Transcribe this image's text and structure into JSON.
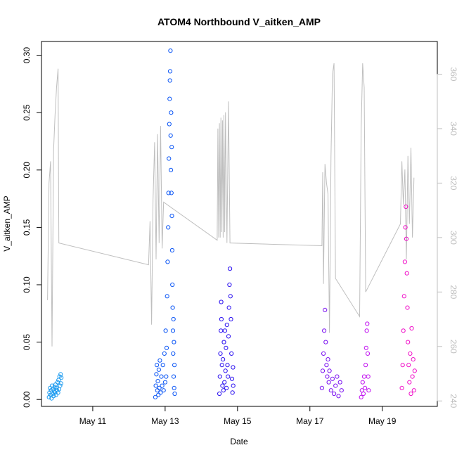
{
  "chart_data": {
    "type": "scatter",
    "title": "ATOM4 Northbound V_aitken_AMP",
    "xlabel": "Date",
    "ylabel": "V_aitken_AMP",
    "x_ticks": [
      {
        "date": "2017-05-11",
        "label": "May 11"
      },
      {
        "date": "2017-05-13",
        "label": "May 13"
      },
      {
        "date": "2017-05-15",
        "label": "May 15"
      },
      {
        "date": "2017-05-17",
        "label": "May 17"
      },
      {
        "date": "2017-05-19",
        "label": "May 19"
      }
    ],
    "xlim": [
      "2017-05-09T14:00",
      "2017-05-20T12:30"
    ],
    "ylim": [
      -0.006,
      0.312
    ],
    "y_ticks": [
      {
        "value": 0.0,
        "label": "0.00"
      },
      {
        "value": 0.05,
        "label": "0.05"
      },
      {
        "value": 0.1,
        "label": "0.10"
      },
      {
        "value": 0.15,
        "label": "0.15"
      },
      {
        "value": 0.2,
        "label": "0.20"
      },
      {
        "value": 0.25,
        "label": "0.25"
      },
      {
        "value": 0.3,
        "label": "0.30"
      }
    ],
    "y2lim": [
      238,
      372
    ],
    "y2_ticks": [
      {
        "value": 240,
        "label": "240"
      },
      {
        "value": 260,
        "label": "260"
      },
      {
        "value": 280,
        "label": "280"
      },
      {
        "value": 300,
        "label": "300"
      },
      {
        "value": 320,
        "label": "320"
      },
      {
        "value": 340,
        "label": "340"
      },
      {
        "value": 360,
        "label": "360"
      }
    ],
    "grid": false,
    "legend": "none",
    "series": [
      {
        "color": "#1e9cf0",
        "points": [
          [
            "2017-05-09T19:00",
            0.002
          ],
          [
            "2017-05-09T19:20",
            0.006
          ],
          [
            "2017-05-09T19:40",
            0.01
          ],
          [
            "2017-05-09T20:00",
            0.004
          ],
          [
            "2017-05-09T20:20",
            0.008
          ],
          [
            "2017-05-09T20:40",
            0.001
          ],
          [
            "2017-05-09T21:00",
            0.012
          ],
          [
            "2017-05-09T21:20",
            0.005
          ],
          [
            "2017-05-09T21:40",
            0.009
          ],
          [
            "2017-05-09T22:00",
            0.003
          ],
          [
            "2017-05-09T22:20",
            0.007
          ],
          [
            "2017-05-09T22:40",
            0.011
          ],
          [
            "2017-05-09T23:00",
            0.006
          ],
          [
            "2017-05-09T23:20",
            0.013
          ],
          [
            "2017-05-09T23:40",
            0.004
          ],
          [
            "2017-05-10T00:00",
            0.01
          ],
          [
            "2017-05-10T00:20",
            0.008
          ],
          [
            "2017-05-10T00:40",
            0.015
          ],
          [
            "2017-05-10T01:00",
            0.006
          ],
          [
            "2017-05-10T01:20",
            0.017
          ],
          [
            "2017-05-10T01:40",
            0.009
          ],
          [
            "2017-05-10T02:00",
            0.02
          ],
          [
            "2017-05-10T02:20",
            0.012
          ],
          [
            "2017-05-10T02:40",
            0.022
          ],
          [
            "2017-05-10T03:00",
            0.014
          ],
          [
            "2017-05-10T03:10",
            0.019
          ]
        ]
      },
      {
        "color": "#0a55f5",
        "points": [
          [
            "2017-05-12T17:30",
            0.002
          ],
          [
            "2017-05-12T17:50",
            0.012
          ],
          [
            "2017-05-12T18:10",
            0.022
          ],
          [
            "2017-05-12T18:30",
            0.03
          ],
          [
            "2017-05-12T18:50",
            0.008
          ],
          [
            "2017-05-12T19:10",
            0.016
          ],
          [
            "2017-05-12T19:30",
            0.004
          ],
          [
            "2017-05-12T19:50",
            0.026
          ],
          [
            "2017-05-12T20:10",
            0.01
          ],
          [
            "2017-05-12T20:30",
            0.034
          ],
          [
            "2017-05-12T21:00",
            0.006
          ],
          [
            "2017-05-12T21:30",
            0.02
          ],
          [
            "2017-05-12T22:00",
            0.012
          ],
          [
            "2017-05-12T22:30",
            0.03
          ],
          [
            "2017-05-12T23:00",
            0.008
          ],
          [
            "2017-05-12T23:30",
            0.04
          ],
          [
            "2017-05-13T00:00",
            0.015
          ],
          [
            "2017-05-13T00:20",
            0.06
          ],
          [
            "2017-05-13T00:40",
            0.02
          ],
          [
            "2017-05-13T01:00",
            0.045
          ],
          [
            "2017-05-13T01:20",
            0.09
          ],
          [
            "2017-05-13T01:40",
            0.12
          ],
          [
            "2017-05-13T02:00",
            0.15
          ],
          [
            "2017-05-13T02:15",
            0.18
          ],
          [
            "2017-05-13T02:30",
            0.21
          ],
          [
            "2017-05-13T02:45",
            0.24
          ],
          [
            "2017-05-13T03:00",
            0.262
          ],
          [
            "2017-05-13T03:10",
            0.278
          ],
          [
            "2017-05-13T03:20",
            0.286
          ],
          [
            "2017-05-13T03:30",
            0.304
          ],
          [
            "2017-05-13T03:40",
            0.23
          ],
          [
            "2017-05-13T03:50",
            0.2
          ],
          [
            "2017-05-13T04:00",
            0.25
          ],
          [
            "2017-05-13T04:10",
            0.18
          ],
          [
            "2017-05-13T04:20",
            0.22
          ],
          [
            "2017-05-13T04:30",
            0.16
          ],
          [
            "2017-05-13T04:40",
            0.13
          ],
          [
            "2017-05-13T04:50",
            0.1
          ],
          [
            "2017-05-13T05:00",
            0.08
          ],
          [
            "2017-05-13T05:10",
            0.06
          ],
          [
            "2017-05-13T05:20",
            0.04
          ],
          [
            "2017-05-13T05:30",
            0.07
          ],
          [
            "2017-05-13T05:40",
            0.02
          ],
          [
            "2017-05-13T05:50",
            0.05
          ],
          [
            "2017-05-13T06:00",
            0.01
          ],
          [
            "2017-05-13T06:10",
            0.03
          ],
          [
            "2017-05-13T06:20",
            0.005
          ]
        ]
      },
      {
        "color": "#2a10f0",
        "points": [
          [
            "2017-05-14T12:00",
            0.005
          ],
          [
            "2017-05-14T12:20",
            0.02
          ],
          [
            "2017-05-14T12:40",
            0.04
          ],
          [
            "2017-05-14T13:00",
            0.06
          ],
          [
            "2017-05-14T13:10",
            0.085
          ],
          [
            "2017-05-14T13:20",
            0.07
          ],
          [
            "2017-05-14T13:40",
            0.03
          ],
          [
            "2017-05-14T14:00",
            0.012
          ],
          [
            "2017-05-14T14:20",
            0.035
          ],
          [
            "2017-05-14T14:40",
            0.008
          ],
          [
            "2017-05-14T15:00",
            0.05
          ],
          [
            "2017-05-14T15:20",
            0.015
          ],
          [
            "2017-05-14T15:40",
            0.06
          ],
          [
            "2017-05-14T16:00",
            0.025
          ],
          [
            "2017-05-14T16:20",
            0.045
          ],
          [
            "2017-05-14T16:40",
            0.01
          ],
          [
            "2017-05-14T17:00",
            0.065
          ],
          [
            "2017-05-14T17:20",
            0.03
          ],
          [
            "2017-05-14T17:40",
            0.02
          ],
          [
            "2017-05-14T18:00",
            0.055
          ],
          [
            "2017-05-14T18:20",
            0.08
          ],
          [
            "2017-05-14T18:40",
            0.1
          ],
          [
            "2017-05-14T19:00",
            0.114
          ],
          [
            "2017-05-14T19:20",
            0.09
          ],
          [
            "2017-05-14T19:40",
            0.07
          ],
          [
            "2017-05-14T20:00",
            0.04
          ],
          [
            "2017-05-14T20:20",
            0.018
          ],
          [
            "2017-05-14T20:40",
            0.006
          ],
          [
            "2017-05-14T21:00",
            0.028
          ],
          [
            "2017-05-14T21:10",
            0.012
          ]
        ]
      },
      {
        "color": "#7a10f0",
        "points": [
          [
            "2017-05-17T08:00",
            0.01
          ],
          [
            "2017-05-17T08:30",
            0.025
          ],
          [
            "2017-05-17T09:00",
            0.04
          ],
          [
            "2017-05-17T09:30",
            0.06
          ],
          [
            "2017-05-17T10:00",
            0.078
          ],
          [
            "2017-05-17T10:30",
            0.05
          ],
          [
            "2017-05-17T11:00",
            0.03
          ],
          [
            "2017-05-17T11:30",
            0.02
          ],
          [
            "2017-05-17T12:00",
            0.035
          ],
          [
            "2017-05-17T12:30",
            0.015
          ],
          [
            "2017-05-17T13:00",
            0.025
          ],
          [
            "2017-05-17T14:00",
            0.008
          ],
          [
            "2017-05-17T15:00",
            0.018
          ],
          [
            "2017-05-17T16:00",
            0.005
          ],
          [
            "2017-05-17T17:00",
            0.012
          ],
          [
            "2017-05-17T18:00",
            0.02
          ],
          [
            "2017-05-17T19:00",
            0.003
          ],
          [
            "2017-05-17T20:00",
            0.015
          ],
          [
            "2017-05-17T21:00",
            0.008
          ]
        ]
      },
      {
        "color": "#c010f0",
        "points": [
          [
            "2017-05-18T10:00",
            0.002
          ],
          [
            "2017-05-18T10:30",
            0.008
          ],
          [
            "2017-05-18T11:00",
            0.015
          ],
          [
            "2017-05-18T11:30",
            0.005
          ],
          [
            "2017-05-18T12:00",
            0.02
          ],
          [
            "2017-05-18T12:30",
            0.01
          ],
          [
            "2017-05-18T13:00",
            0.03
          ],
          [
            "2017-05-18T13:20",
            0.045
          ],
          [
            "2017-05-18T13:40",
            0.06
          ],
          [
            "2017-05-18T14:00",
            0.066
          ],
          [
            "2017-05-18T14:20",
            0.04
          ],
          [
            "2017-05-18T14:40",
            0.02
          ],
          [
            "2017-05-18T15:00",
            0.008
          ]
        ]
      },
      {
        "color": "#f010c8",
        "points": [
          [
            "2017-05-19T13:00",
            0.01
          ],
          [
            "2017-05-19T13:30",
            0.03
          ],
          [
            "2017-05-19T14:00",
            0.06
          ],
          [
            "2017-05-19T14:30",
            0.09
          ],
          [
            "2017-05-19T15:00",
            0.12
          ],
          [
            "2017-05-19T15:20",
            0.15
          ],
          [
            "2017-05-19T15:40",
            0.168
          ],
          [
            "2017-05-19T16:00",
            0.14
          ],
          [
            "2017-05-19T16:20",
            0.11
          ],
          [
            "2017-05-19T16:40",
            0.08
          ],
          [
            "2017-05-19T17:00",
            0.05
          ],
          [
            "2017-05-19T17:30",
            0.03
          ],
          [
            "2017-05-19T18:00",
            0.015
          ],
          [
            "2017-05-19T18:30",
            0.04
          ],
          [
            "2017-05-19T19:00",
            0.005
          ],
          [
            "2017-05-19T19:30",
            0.062
          ],
          [
            "2017-05-19T20:00",
            0.02
          ],
          [
            "2017-05-19T20:30",
            0.035
          ],
          [
            "2017-05-19T21:00",
            0.008
          ],
          [
            "2017-05-19T21:30",
            0.025
          ]
        ]
      }
    ],
    "secondary_line": {
      "color": "#bfbfbf",
      "points": [
        [
          "2017-05-09T18:00",
          277
        ],
        [
          "2017-05-09T19:00",
          320
        ],
        [
          "2017-05-09T20:00",
          328
        ],
        [
          "2017-05-09T21:00",
          260
        ],
        [
          "2017-05-09T22:00",
          332
        ],
        [
          "2017-05-09T23:00",
          345
        ],
        [
          "2017-05-10T00:00",
          355
        ],
        [
          "2017-05-10T01:00",
          362
        ],
        [
          "2017-05-10T01:30",
          298
        ],
        [
          "2017-05-12T13:00",
          290
        ],
        [
          "2017-05-12T14:00",
          306
        ],
        [
          "2017-05-12T15:00",
          268
        ],
        [
          "2017-05-12T16:00",
          314
        ],
        [
          "2017-05-12T17:00",
          335
        ],
        [
          "2017-05-12T18:00",
          292
        ],
        [
          "2017-05-12T19:00",
          338
        ],
        [
          "2017-05-12T20:00",
          298
        ],
        [
          "2017-05-12T21:00",
          341
        ],
        [
          "2017-05-12T22:00",
          296
        ],
        [
          "2017-05-12T23:00",
          313
        ],
        [
          "2017-05-14T10:30",
          299
        ],
        [
          "2017-05-14T11:00",
          340
        ],
        [
          "2017-05-14T11:30",
          300
        ],
        [
          "2017-05-14T12:00",
          342
        ],
        [
          "2017-05-14T12:30",
          300
        ],
        [
          "2017-05-14T13:00",
          344
        ],
        [
          "2017-05-14T13:30",
          302
        ],
        [
          "2017-05-14T14:00",
          343
        ],
        [
          "2017-05-14T14:30",
          300
        ],
        [
          "2017-05-14T15:00",
          345
        ],
        [
          "2017-05-14T15:30",
          302
        ],
        [
          "2017-05-14T16:00",
          346
        ],
        [
          "2017-05-14T17:00",
          298
        ],
        [
          "2017-05-14T18:00",
          350
        ],
        [
          "2017-05-14T19:00",
          298
        ],
        [
          "2017-05-17T08:00",
          297
        ],
        [
          "2017-05-17T08:30",
          324
        ],
        [
          "2017-05-17T09:00",
          283
        ],
        [
          "2017-05-17T10:00",
          327
        ],
        [
          "2017-05-17T11:00",
          320
        ],
        [
          "2017-05-17T12:00",
          316
        ],
        [
          "2017-05-17T13:00",
          265
        ],
        [
          "2017-05-17T14:00",
          330
        ],
        [
          "2017-05-17T15:00",
          360
        ],
        [
          "2017-05-17T16:00",
          364
        ],
        [
          "2017-05-17T17:00",
          285
        ],
        [
          "2017-05-18T09:00",
          271
        ],
        [
          "2017-05-18T10:00",
          340
        ],
        [
          "2017-05-18T11:00",
          364
        ],
        [
          "2017-05-18T12:00",
          355
        ],
        [
          "2017-05-18T13:00",
          280
        ],
        [
          "2017-05-19T12:00",
          305
        ],
        [
          "2017-05-19T13:00",
          328
        ],
        [
          "2017-05-19T14:00",
          312
        ],
        [
          "2017-05-19T15:00",
          325
        ],
        [
          "2017-05-19T16:00",
          292
        ],
        [
          "2017-05-19T17:00",
          330
        ],
        [
          "2017-05-19T18:00",
          305
        ],
        [
          "2017-05-19T19:00",
          333
        ],
        [
          "2017-05-19T20:00",
          300
        ],
        [
          "2017-05-19T21:00",
          322
        ]
      ]
    }
  }
}
